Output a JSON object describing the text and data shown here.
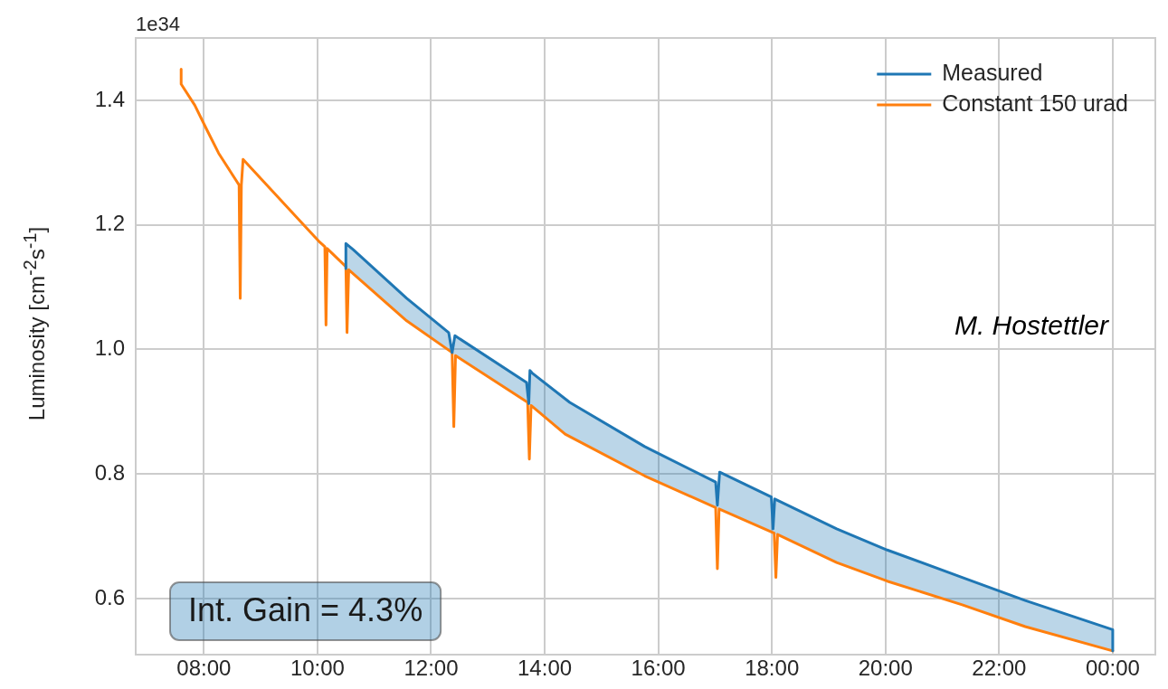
{
  "chart_data": {
    "type": "line",
    "ylabel": "Luminosity [cm$^{-2}$s$^{-1}$]",
    "xlim": [
      6.8,
      24.75
    ],
    "xticks": [
      {
        "value": 8,
        "label": "08:00"
      },
      {
        "value": 10,
        "label": "10:00"
      },
      {
        "value": 12,
        "label": "12:00"
      },
      {
        "value": 14,
        "label": "14:00"
      },
      {
        "value": 16,
        "label": "16:00"
      },
      {
        "value": 18,
        "label": "18:00"
      },
      {
        "value": 20,
        "label": "20:00"
      },
      {
        "value": 22,
        "label": "22:00"
      },
      {
        "value": 24,
        "label": "00:00"
      }
    ],
    "ylim": [
      0.51,
      1.5
    ],
    "yticks": [
      0.6,
      0.8,
      {
        "value": 1,
        "label": "1.0"
      },
      1.2,
      1.4
    ],
    "grid": true,
    "legend": "top right",
    "marker": "none",
    "line_style": "solid",
    "annotations": [
      "1e34",
      "M. Hostettler",
      "Int. Gain = 4.3%"
    ],
    "series": [
      {
        "name": "Measured",
        "color": "#1f77b4",
        "x": [
          10.5,
          10.5,
          10.63,
          11.57,
          12.31,
          12.37,
          12.42,
          13.68,
          13.72,
          13.74,
          13.78,
          14.44,
          15.76,
          17.01,
          17.04,
          17.08,
          17.99,
          18.02,
          18.05,
          19.14,
          20.03,
          21.35,
          22.46,
          24.0,
          24.0
        ],
        "values": [
          1.13,
          1.17,
          1.16,
          1.082,
          1.027,
          0.995,
          1.022,
          0.947,
          0.913,
          0.966,
          0.962,
          0.915,
          0.844,
          0.787,
          0.75,
          0.803,
          0.763,
          0.712,
          0.76,
          0.712,
          0.678,
          0.634,
          0.597,
          0.55,
          0.516
        ],
        "lower": [
          1.13,
          1.133,
          1.122,
          1.046,
          0.999,
          0.995,
          0.991,
          0.917,
          0.913,
          0.911,
          0.908,
          0.858,
          0.797,
          0.746,
          0.746,
          0.745,
          0.707,
          0.705,
          0.704,
          0.658,
          0.628,
          0.59,
          0.555,
          0.516,
          0.516
        ],
        "upper": [
          1.13,
          1.17,
          1.16,
          1.082,
          1.027,
          0.995,
          1.022,
          0.947,
          0.913,
          0.966,
          0.962,
          0.915,
          0.844,
          0.787,
          0.75,
          0.803,
          0.763,
          0.712,
          0.76,
          0.712,
          0.678,
          0.634,
          0.597,
          0.55,
          0.516
        ]
      },
      {
        "name": "Constant 150 urad",
        "color": "#ff7f0e",
        "x": [
          7.6,
          7.6,
          7.84,
          8.05,
          8.26,
          8.57,
          8.62,
          8.64,
          8.66,
          8.69,
          10.02,
          10.13,
          10.15,
          10.17,
          10.5,
          10.52,
          10.55,
          11.57,
          12.37,
          12.4,
          12.43,
          13.7,
          13.73,
          13.76,
          14.36,
          15.76,
          17.01,
          17.04,
          17.07,
          18.04,
          18.07,
          18.1,
          19.14,
          20.03,
          21.35,
          22.46,
          24.0
        ],
        "values": [
          1.45,
          1.426,
          1.392,
          1.353,
          1.315,
          1.271,
          1.264,
          1.082,
          1.264,
          1.305,
          1.174,
          1.165,
          1.039,
          1.162,
          1.133,
          1.027,
          1.128,
          1.046,
          0.995,
          0.876,
          0.99,
          0.915,
          0.824,
          0.91,
          0.864,
          0.797,
          0.746,
          0.648,
          0.744,
          0.705,
          0.634,
          0.703,
          0.658,
          0.628,
          0.59,
          0.555,
          0.516
        ]
      }
    ]
  }
}
